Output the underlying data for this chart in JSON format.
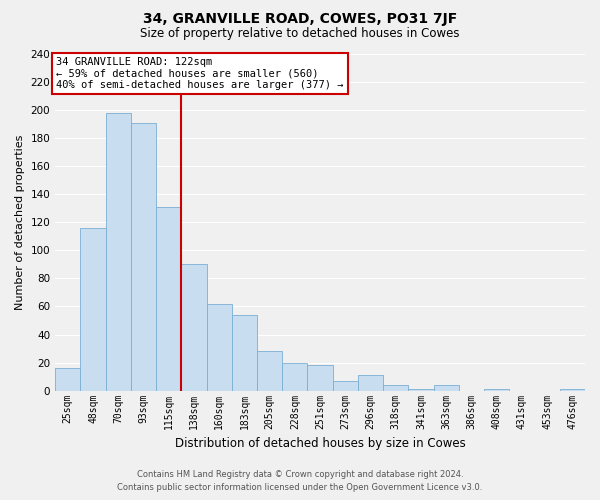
{
  "title": "34, GRANVILLE ROAD, COWES, PO31 7JF",
  "subtitle": "Size of property relative to detached houses in Cowes",
  "xlabel": "Distribution of detached houses by size in Cowes",
  "ylabel": "Number of detached properties",
  "bar_labels": [
    "25sqm",
    "48sqm",
    "70sqm",
    "93sqm",
    "115sqm",
    "138sqm",
    "160sqm",
    "183sqm",
    "205sqm",
    "228sqm",
    "251sqm",
    "273sqm",
    "296sqm",
    "318sqm",
    "341sqm",
    "363sqm",
    "386sqm",
    "408sqm",
    "431sqm",
    "453sqm",
    "476sqm"
  ],
  "bar_values": [
    16,
    116,
    198,
    191,
    131,
    90,
    62,
    54,
    28,
    20,
    18,
    7,
    11,
    4,
    1,
    4,
    0,
    1,
    0,
    0,
    1
  ],
  "bar_color": "#c9ddf0",
  "bar_edgecolor": "#7aafd4",
  "vline_x": 4.5,
  "vline_color": "#cc0000",
  "ylim": [
    0,
    240
  ],
  "yticks": [
    0,
    20,
    40,
    60,
    80,
    100,
    120,
    140,
    160,
    180,
    200,
    220,
    240
  ],
  "annotation_title": "34 GRANVILLE ROAD: 122sqm",
  "annotation_line1": "← 59% of detached houses are smaller (560)",
  "annotation_line2": "40% of semi-detached houses are larger (377) →",
  "annotation_box_color": "#ffffff",
  "annotation_box_edgecolor": "#cc0000",
  "footer_line1": "Contains HM Land Registry data © Crown copyright and database right 2024.",
  "footer_line2": "Contains public sector information licensed under the Open Government Licence v3.0.",
  "bg_color": "#f0f0f0",
  "grid_color": "#ffffff"
}
